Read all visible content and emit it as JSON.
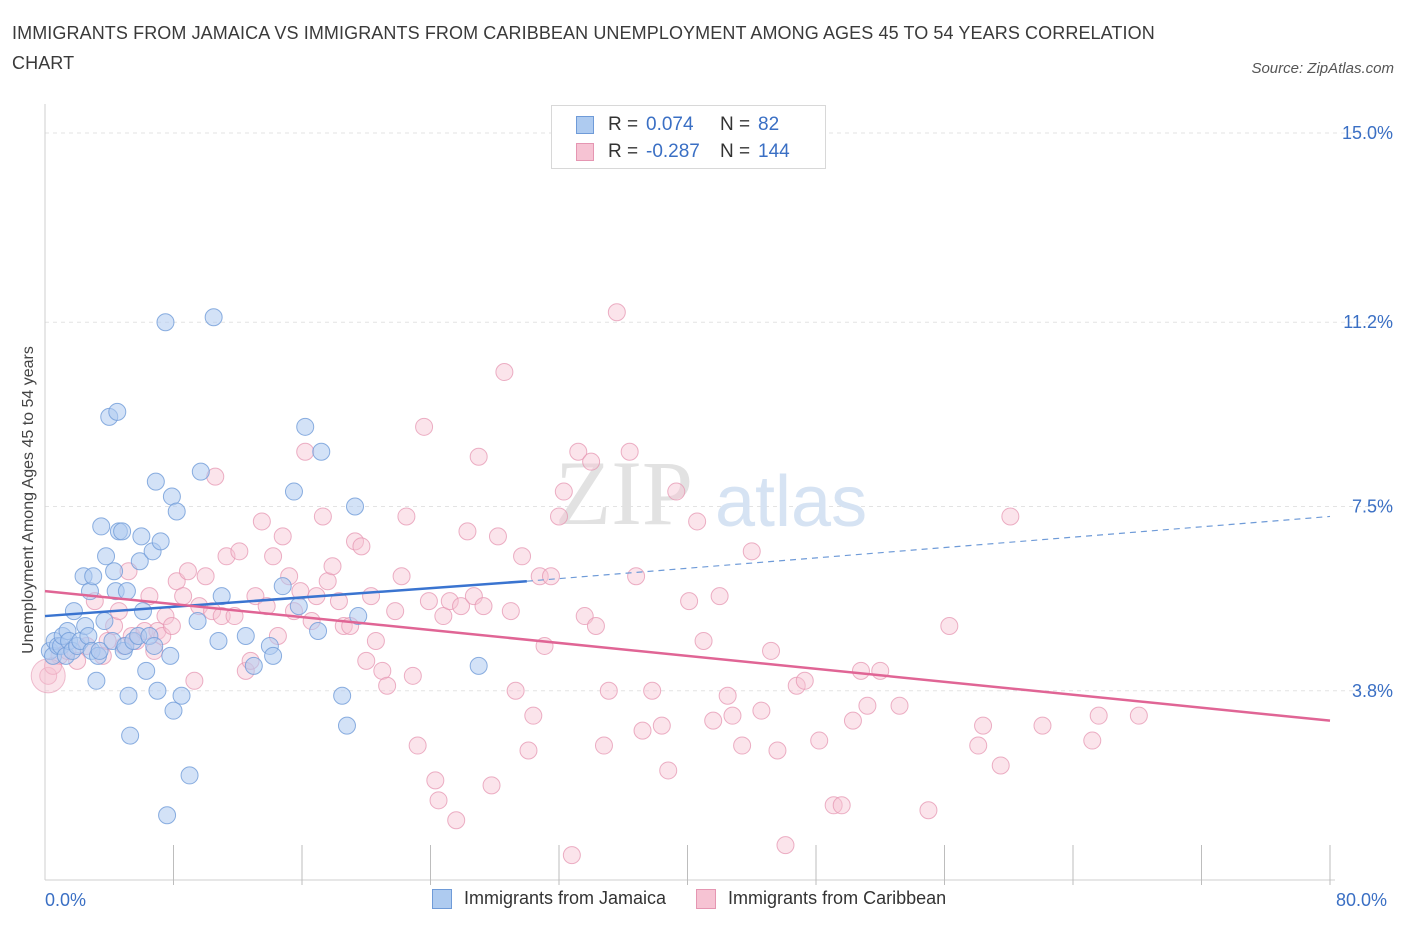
{
  "title": "IMMIGRANTS FROM JAMAICA VS IMMIGRANTS FROM CARIBBEAN UNEMPLOYMENT AMONG AGES 45 TO 54 YEARS CORRELATION CHART",
  "source": "Source: ZipAtlas.com",
  "watermark": {
    "zip": "ZIP",
    "atlas": "atlas"
  },
  "legend": {
    "r_label": "R =",
    "n_label": "N =",
    "rows": [
      {
        "r": "0.074",
        "n": "82",
        "fill": "#aecbf0",
        "stroke": "#6f9bd8"
      },
      {
        "r": "-0.287",
        "n": "144",
        "fill": "#f6c3d3",
        "stroke": "#e596b2"
      }
    ]
  },
  "bottom_legend": [
    "Immigrants from Jamaica",
    "Immigrants from Caribbean"
  ],
  "chart_data": {
    "type": "scatter",
    "title": "IMMIGRANTS FROM JAMAICA VS IMMIGRANTS FROM CARIBBEAN UNEMPLOYMENT AMONG AGES 45 TO 54 YEARS CORRELATION CHART",
    "xlabel": "",
    "ylabel": "Unemployment Among Ages 45 to 54 years",
    "xlim": [
      0,
      80
    ],
    "ylim": [
      0,
      15
    ],
    "x_tick_labels": [
      "0.0%",
      "80.0%"
    ],
    "y_tick_labels": [
      "3.8%",
      "7.5%",
      "11.2%",
      "15.0%"
    ],
    "y_ticks": [
      3.8,
      7.5,
      11.2,
      15.0
    ],
    "grid": "horizontal dashed",
    "series": [
      {
        "name": "Immigrants from Jamaica",
        "color": "#6f9bd8",
        "fill": "#aecbf0",
        "trend": {
          "x0": 0,
          "y0": 5.3,
          "x1": 30,
          "y1": 6.0,
          "dashed_to_x": 80,
          "dashed_to_y": 7.3
        },
        "points": [
          [
            0.3,
            4.6
          ],
          [
            0.5,
            4.5
          ],
          [
            0.6,
            4.8
          ],
          [
            0.8,
            4.7
          ],
          [
            1.0,
            4.7
          ],
          [
            1.1,
            4.9
          ],
          [
            1.3,
            4.5
          ],
          [
            1.4,
            5.0
          ],
          [
            1.5,
            4.8
          ],
          [
            1.7,
            4.6
          ],
          [
            1.8,
            5.4
          ],
          [
            2.0,
            4.7
          ],
          [
            2.2,
            4.8
          ],
          [
            2.4,
            6.1
          ],
          [
            2.5,
            5.1
          ],
          [
            2.7,
            4.9
          ],
          [
            2.8,
            5.8
          ],
          [
            2.9,
            4.6
          ],
          [
            3.0,
            6.1
          ],
          [
            3.2,
            4.0
          ],
          [
            3.3,
            4.5
          ],
          [
            3.4,
            4.6
          ],
          [
            3.5,
            7.1
          ],
          [
            3.7,
            5.2
          ],
          [
            3.8,
            6.5
          ],
          [
            4.0,
            9.3
          ],
          [
            4.2,
            4.8
          ],
          [
            4.3,
            6.2
          ],
          [
            4.4,
            5.8
          ],
          [
            4.5,
            9.4
          ],
          [
            4.6,
            7.0
          ],
          [
            4.8,
            7.0
          ],
          [
            4.9,
            4.6
          ],
          [
            5.0,
            4.7
          ],
          [
            5.1,
            5.8
          ],
          [
            5.2,
            3.7
          ],
          [
            5.3,
            2.9
          ],
          [
            5.5,
            4.8
          ],
          [
            5.8,
            4.9
          ],
          [
            5.9,
            6.4
          ],
          [
            6.0,
            6.9
          ],
          [
            6.1,
            5.4
          ],
          [
            6.3,
            4.2
          ],
          [
            6.5,
            4.9
          ],
          [
            6.7,
            6.6
          ],
          [
            6.8,
            4.7
          ],
          [
            6.9,
            8.0
          ],
          [
            7.0,
            3.8
          ],
          [
            7.2,
            6.8
          ],
          [
            7.5,
            11.2
          ],
          [
            7.6,
            1.3
          ],
          [
            7.8,
            4.5
          ],
          [
            7.9,
            7.7
          ],
          [
            8.0,
            3.4
          ],
          [
            8.2,
            7.4
          ],
          [
            8.5,
            3.7
          ],
          [
            9.0,
            2.1
          ],
          [
            9.5,
            5.2
          ],
          [
            9.7,
            8.2
          ],
          [
            10.5,
            11.3
          ],
          [
            10.8,
            4.8
          ],
          [
            11.0,
            5.7
          ],
          [
            12.5,
            4.9
          ],
          [
            13.0,
            4.3
          ],
          [
            14.0,
            4.7
          ],
          [
            14.2,
            4.5
          ],
          [
            14.8,
            5.9
          ],
          [
            15.5,
            7.8
          ],
          [
            15.8,
            5.5
          ],
          [
            16.2,
            9.1
          ],
          [
            17.0,
            5.0
          ],
          [
            17.2,
            8.6
          ],
          [
            18.5,
            3.7
          ],
          [
            18.8,
            3.1
          ],
          [
            19.5,
            5.3
          ],
          [
            19.3,
            7.5
          ],
          [
            27.0,
            4.3
          ]
        ]
      },
      {
        "name": "Immigrants from Caribbean",
        "color": "#e596b2",
        "fill": "#f6c3d3",
        "trend": {
          "x0": 0,
          "y0": 5.8,
          "x1": 80,
          "y1": 3.2
        },
        "points": [
          [
            0.2,
            4.1
          ],
          [
            0.5,
            4.3
          ],
          [
            0.9,
            4.5
          ],
          [
            1.4,
            4.6
          ],
          [
            2.0,
            4.4
          ],
          [
            2.6,
            4.7
          ],
          [
            3.1,
            5.6
          ],
          [
            3.6,
            4.5
          ],
          [
            3.9,
            4.8
          ],
          [
            4.3,
            5.1
          ],
          [
            4.6,
            5.4
          ],
          [
            4.9,
            4.7
          ],
          [
            5.2,
            6.2
          ],
          [
            5.4,
            4.9
          ],
          [
            5.7,
            4.8
          ],
          [
            6.2,
            5.0
          ],
          [
            6.5,
            5.7
          ],
          [
            6.8,
            4.6
          ],
          [
            7.0,
            5.0
          ],
          [
            7.3,
            4.9
          ],
          [
            7.5,
            5.3
          ],
          [
            7.9,
            5.1
          ],
          [
            8.2,
            6.0
          ],
          [
            8.6,
            5.7
          ],
          [
            8.9,
            6.2
          ],
          [
            9.3,
            4.0
          ],
          [
            9.6,
            5.5
          ],
          [
            10.0,
            6.1
          ],
          [
            10.4,
            5.4
          ],
          [
            10.6,
            8.1
          ],
          [
            11.0,
            5.3
          ],
          [
            11.3,
            6.5
          ],
          [
            11.8,
            5.3
          ],
          [
            12.1,
            6.6
          ],
          [
            12.5,
            4.2
          ],
          [
            12.8,
            4.4
          ],
          [
            13.1,
            5.7
          ],
          [
            13.5,
            7.2
          ],
          [
            13.8,
            5.5
          ],
          [
            14.2,
            6.5
          ],
          [
            14.5,
            4.9
          ],
          [
            14.8,
            6.9
          ],
          [
            15.2,
            6.1
          ],
          [
            15.5,
            5.4
          ],
          [
            15.9,
            5.8
          ],
          [
            16.2,
            8.6
          ],
          [
            16.6,
            5.2
          ],
          [
            16.9,
            5.7
          ],
          [
            17.3,
            7.3
          ],
          [
            17.6,
            6.0
          ],
          [
            17.9,
            6.3
          ],
          [
            18.3,
            5.6
          ],
          [
            18.6,
            5.1
          ],
          [
            19.0,
            5.1
          ],
          [
            19.3,
            6.8
          ],
          [
            19.7,
            6.7
          ],
          [
            20.0,
            4.4
          ],
          [
            20.3,
            5.7
          ],
          [
            20.6,
            4.8
          ],
          [
            21.0,
            4.2
          ],
          [
            21.3,
            3.9
          ],
          [
            21.8,
            5.4
          ],
          [
            22.2,
            6.1
          ],
          [
            22.5,
            7.3
          ],
          [
            22.9,
            4.1
          ],
          [
            23.2,
            2.7
          ],
          [
            23.6,
            9.1
          ],
          [
            23.9,
            5.6
          ],
          [
            24.3,
            2.0
          ],
          [
            24.5,
            1.6
          ],
          [
            24.8,
            5.3
          ],
          [
            25.2,
            5.6
          ],
          [
            25.6,
            1.2
          ],
          [
            25.9,
            5.5
          ],
          [
            26.3,
            7.0
          ],
          [
            26.7,
            5.7
          ],
          [
            27.0,
            8.5
          ],
          [
            27.3,
            5.5
          ],
          [
            27.8,
            1.9
          ],
          [
            28.2,
            6.9
          ],
          [
            28.6,
            10.2
          ],
          [
            29.0,
            5.4
          ],
          [
            29.3,
            3.8
          ],
          [
            29.7,
            6.5
          ],
          [
            30.1,
            2.6
          ],
          [
            30.4,
            3.3
          ],
          [
            30.8,
            6.1
          ],
          [
            31.1,
            4.7
          ],
          [
            31.5,
            6.1
          ],
          [
            32.0,
            7.3
          ],
          [
            32.3,
            7.8
          ],
          [
            32.8,
            0.5
          ],
          [
            33.2,
            8.6
          ],
          [
            33.6,
            5.3
          ],
          [
            34.0,
            8.4
          ],
          [
            34.3,
            5.1
          ],
          [
            34.8,
            2.7
          ],
          [
            35.1,
            3.8
          ],
          [
            35.6,
            11.4
          ],
          [
            36.4,
            8.6
          ],
          [
            36.8,
            6.1
          ],
          [
            37.2,
            3.0
          ],
          [
            37.8,
            3.8
          ],
          [
            38.4,
            3.1
          ],
          [
            38.8,
            2.2
          ],
          [
            39.3,
            7.8
          ],
          [
            40.1,
            5.6
          ],
          [
            40.6,
            7.2
          ],
          [
            41.0,
            4.8
          ],
          [
            41.6,
            3.2
          ],
          [
            42.0,
            5.7
          ],
          [
            42.5,
            3.7
          ],
          [
            42.8,
            3.3
          ],
          [
            43.4,
            2.7
          ],
          [
            44.0,
            6.6
          ],
          [
            44.6,
            3.4
          ],
          [
            45.2,
            4.6
          ],
          [
            45.6,
            2.6
          ],
          [
            46.1,
            0.7
          ],
          [
            46.8,
            3.9
          ],
          [
            47.3,
            4.0
          ],
          [
            48.2,
            2.8
          ],
          [
            49.1,
            1.5
          ],
          [
            49.6,
            1.5
          ],
          [
            50.3,
            3.2
          ],
          [
            50.8,
            4.2
          ],
          [
            51.2,
            3.5
          ],
          [
            52.0,
            4.2
          ],
          [
            53.2,
            3.5
          ],
          [
            55.0,
            1.4
          ],
          [
            56.3,
            5.1
          ],
          [
            58.1,
            2.7
          ],
          [
            58.4,
            3.1
          ],
          [
            59.5,
            2.3
          ],
          [
            60.1,
            7.3
          ],
          [
            62.1,
            3.1
          ],
          [
            65.2,
            2.8
          ],
          [
            65.6,
            3.3
          ],
          [
            68.1,
            3.3
          ]
        ]
      }
    ]
  }
}
